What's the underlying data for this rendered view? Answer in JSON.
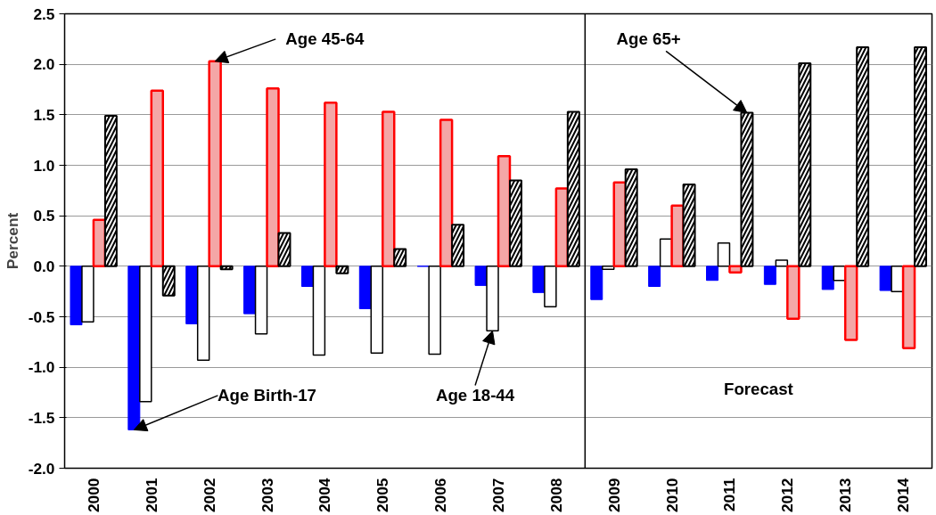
{
  "chart_data": {
    "type": "bar",
    "ylabel": "Percent",
    "x": [
      2000,
      2001,
      2002,
      2003,
      2004,
      2005,
      2006,
      2007,
      2008,
      2009,
      2010,
      2011,
      2012,
      2013,
      2014
    ],
    "xlim": [
      1999.5,
      2014.5
    ],
    "xticks": [
      2000,
      2001,
      2002,
      2003,
      2004,
      2005,
      2006,
      2007,
      2008,
      2009,
      2010,
      2011,
      2012,
      2013,
      2014
    ],
    "ylim": [
      -2.0,
      2.5
    ],
    "yticks": [
      {
        "value": -2.0,
        "label": "-2.0"
      },
      {
        "value": -1.5,
        "label": "-1.5"
      },
      {
        "value": -1.0,
        "label": "-1.0"
      },
      {
        "value": -0.5,
        "label": "-0.5"
      },
      {
        "value": 0,
        "label": "0.0"
      },
      {
        "value": 0.5,
        "label": "0.5"
      },
      {
        "value": 1.0,
        "label": "1.0"
      },
      {
        "value": 1.5,
        "label": "1.5"
      },
      {
        "value": 2.0,
        "label": "2.0"
      },
      {
        "value": 2.5,
        "label": "2.5"
      }
    ],
    "grid": "y",
    "series": [
      {
        "color": "#0000ff",
        "values": [
          -0.58,
          -1.62,
          -0.57,
          -0.47,
          -0.2,
          -0.42,
          0,
          -0.19,
          -0.26,
          -0.33,
          -0.2,
          -0.14,
          -0.18,
          -0.23,
          -0.24
        ]
      },
      {
        "color": "#ffffff",
        "values": [
          -0.55,
          -1.34,
          -0.93,
          -0.67,
          -0.88,
          -0.86,
          -0.87,
          -0.64,
          -0.4,
          -0.03,
          0.27,
          0.23,
          0.06,
          -0.14,
          -0.25
        ]
      },
      {
        "color": "#f4a6a6",
        "values": [
          0.46,
          1.74,
          2.03,
          1.76,
          1.62,
          1.53,
          1.45,
          1.09,
          0.77,
          0.83,
          0.6,
          -0.06,
          -0.52,
          -0.73,
          -0.81
        ]
      },
      {
        "color": "#000000",
        "values": [
          1.49,
          -0.29,
          -0.03,
          0.33,
          -0.07,
          0.17,
          0.41,
          0.85,
          1.53,
          0.96,
          0.81,
          1.52,
          2.01,
          2.17,
          2.17
        ]
      }
    ],
    "ref_lines": [
      {
        "axis": "x",
        "value": 2008.5,
        "color": "#000000"
      }
    ],
    "annotations": [
      {
        "text": "Age 45-64",
        "x": 2002.1,
        "y": 2.03
      },
      {
        "text": "Age 65+",
        "x": 2011.3,
        "y": 1.52
      },
      {
        "text": "Age Birth-17",
        "x": 2000.7,
        "y": -1.62
      },
      {
        "text": "Age 18-44",
        "x": 2006.9,
        "y": -0.64
      },
      "Forecast"
    ]
  }
}
